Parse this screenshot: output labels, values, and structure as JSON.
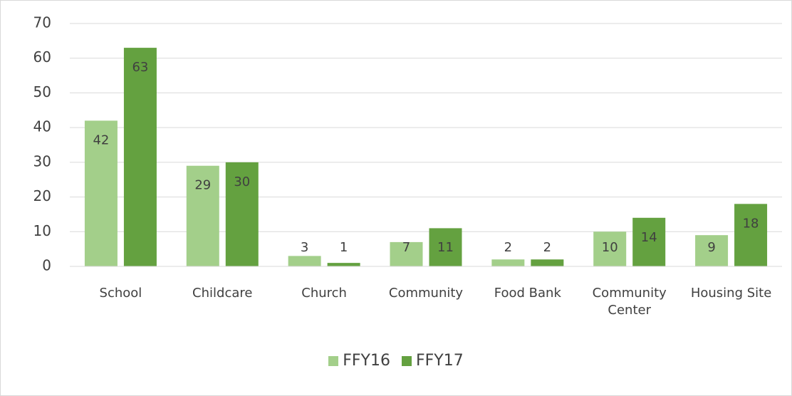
{
  "chart_data": {
    "type": "bar",
    "categories": [
      "School",
      "Childcare",
      "Church",
      "Community",
      "Food Bank",
      "Community Center",
      "Housing Site"
    ],
    "series": [
      {
        "name": "FFY16",
        "color": "#a3cf8a",
        "values": [
          42,
          29,
          3,
          7,
          2,
          10,
          9
        ]
      },
      {
        "name": "FFY17",
        "color": "#64a140",
        "values": [
          63,
          30,
          1,
          11,
          2,
          14,
          18
        ]
      }
    ],
    "ylim": [
      0,
      70
    ],
    "yticks": [
      0,
      10,
      20,
      30,
      40,
      50,
      60,
      70
    ],
    "grid": true,
    "legend": "bottom"
  }
}
